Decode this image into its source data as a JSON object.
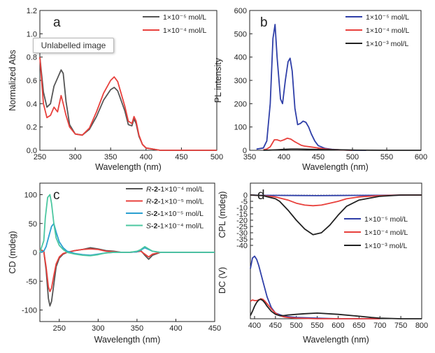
{
  "tooltip": {
    "text": "Unlabelled image"
  },
  "colors": {
    "axis": "#222222",
    "black": "#222222",
    "blue": "#2f3fa8",
    "red": "#e8403c",
    "cyan": "#2a9fd0",
    "green": "#4cc7a0",
    "gray": "#555555"
  },
  "chart_data": [
    {
      "panel": "a",
      "type": "line",
      "xlabel": "Wavelength (nm)",
      "ylabel": "Normalized Abs",
      "xlim": [
        250,
        500
      ],
      "ylim": [
        0,
        1.2
      ],
      "xticks": [
        250,
        300,
        350,
        400,
        450,
        500
      ],
      "yticks": [
        0.0,
        0.2,
        0.4,
        0.6,
        0.8,
        1.0,
        1.2
      ],
      "xtick_labels": [
        "250",
        "300",
        "350",
        "400",
        "450",
        "500"
      ],
      "ytick_labels": [
        "0.0",
        "0.2",
        "0.4",
        "0.6",
        "0.8",
        "1.0",
        "1.2"
      ],
      "legend_position": "top-right",
      "series": [
        {
          "name": "1×10⁻⁵ mol/L",
          "color": "#555555",
          "x": [
            250,
            255,
            260,
            265,
            270,
            275,
            280,
            283,
            287,
            292,
            300,
            310,
            320,
            330,
            340,
            350,
            355,
            360,
            370,
            375,
            380,
            383,
            386,
            390,
            395,
            400,
            420,
            450,
            500
          ],
          "y": [
            0.8,
            0.5,
            0.37,
            0.4,
            0.55,
            0.62,
            0.69,
            0.66,
            0.42,
            0.22,
            0.14,
            0.13,
            0.18,
            0.29,
            0.43,
            0.52,
            0.54,
            0.51,
            0.34,
            0.22,
            0.21,
            0.27,
            0.23,
            0.12,
            0.05,
            0.02,
            0.0,
            0.0,
            0.0
          ]
        },
        {
          "name": "1×10⁻⁴ mol/L",
          "color": "#e8403c",
          "x": [
            250,
            255,
            260,
            265,
            270,
            275,
            280,
            283,
            287,
            292,
            300,
            310,
            320,
            330,
            340,
            350,
            355,
            360,
            370,
            375,
            380,
            383,
            386,
            390,
            395,
            400,
            420,
            450,
            500
          ],
          "y": [
            0.8,
            0.4,
            0.28,
            0.3,
            0.37,
            0.33,
            0.47,
            0.4,
            0.3,
            0.2,
            0.14,
            0.13,
            0.19,
            0.33,
            0.49,
            0.6,
            0.63,
            0.59,
            0.38,
            0.25,
            0.23,
            0.29,
            0.25,
            0.13,
            0.05,
            0.02,
            0.0,
            0.0,
            0.0
          ]
        }
      ]
    },
    {
      "panel": "b",
      "type": "line",
      "xlabel": "Wavelength (nm)",
      "ylabel": "PL intensity",
      "xlim": [
        350,
        600
      ],
      "ylim": [
        0,
        600
      ],
      "xticks": [
        350,
        400,
        450,
        500,
        550,
        600
      ],
      "yticks": [
        0,
        100,
        200,
        300,
        400,
        500,
        600
      ],
      "xtick_labels": [
        "350",
        "400",
        "450",
        "500",
        "550",
        "600"
      ],
      "ytick_labels": [
        "0",
        "100",
        "200",
        "300",
        "400",
        "500",
        "600"
      ],
      "legend_position": "top-right",
      "series": [
        {
          "name": "1×10⁻⁵ mol/L",
          "color": "#2f3fa8",
          "x": [
            360,
            370,
            375,
            380,
            384,
            387,
            390,
            395,
            398,
            402,
            406,
            409,
            412,
            416,
            420,
            424,
            428,
            432,
            436,
            440,
            445,
            450,
            460,
            470,
            480,
            500,
            520
          ],
          "y": [
            5,
            10,
            40,
            200,
            480,
            540,
            400,
            220,
            200,
            300,
            380,
            395,
            340,
            180,
            110,
            115,
            125,
            120,
            100,
            70,
            40,
            20,
            8,
            4,
            2,
            0,
            0
          ]
        },
        {
          "name": "1×10⁻⁴ mol/L",
          "color": "#e8403c",
          "x": [
            370,
            375,
            380,
            386,
            390,
            395,
            400,
            405,
            410,
            415,
            420,
            425,
            430,
            440,
            450,
            460,
            470,
            480,
            490,
            500
          ],
          "y": [
            2,
            5,
            15,
            45,
            45,
            40,
            45,
            52,
            48,
            38,
            30,
            22,
            18,
            14,
            10,
            6,
            3,
            2,
            1,
            0
          ]
        },
        {
          "name": "1×10⁻³ mol/L",
          "color": "#222222",
          "x": [
            370,
            380,
            390,
            400,
            410,
            420,
            440,
            460,
            480,
            500,
            550,
            600
          ],
          "y": [
            0,
            1,
            2,
            4,
            5,
            5,
            4,
            3,
            2,
            1,
            0,
            0
          ]
        }
      ]
    },
    {
      "panel": "c",
      "type": "line",
      "xlabel": "Wavelength (nm)",
      "ylabel": "CD (mdeg)",
      "xlim": [
        225,
        450
      ],
      "ylim": [
        -120,
        120
      ],
      "xticks": [
        250,
        300,
        350,
        400,
        450
      ],
      "yticks": [
        -100,
        -50,
        0,
        50,
        100
      ],
      "xtick_labels": [
        "250",
        "300",
        "350",
        "400",
        "450"
      ],
      "ytick_labels": [
        "-100",
        "-50",
        "0",
        "50",
        "100"
      ],
      "legend_position": "top-right",
      "series": [
        {
          "name": "R-2-1×10⁻⁴ mol/L",
          "prefix": "R",
          "mid": "-2-",
          "conc": "1×10⁻⁴ mol/L",
          "color": "#555555",
          "x": [
            225,
            230,
            233,
            236,
            238,
            240,
            243,
            246,
            250,
            255,
            260,
            270,
            280,
            290,
            300,
            310,
            320,
            330,
            340,
            350,
            355,
            360,
            365,
            370,
            380,
            390,
            400,
            450
          ],
          "y": [
            5,
            2,
            -30,
            -80,
            -93,
            -85,
            -55,
            -25,
            -10,
            -3,
            0,
            3,
            5,
            8,
            6,
            3,
            2,
            0,
            0,
            1,
            3,
            -5,
            -12,
            -5,
            0,
            0,
            0,
            0
          ]
        },
        {
          "name": "R-2-1×10⁻⁵ mol/L",
          "prefix": "R",
          "mid": "-2-",
          "conc": "1×10⁻⁵ mol/L",
          "color": "#e8403c",
          "x": [
            225,
            230,
            233,
            236,
            238,
            240,
            243,
            246,
            250,
            255,
            260,
            270,
            280,
            290,
            300,
            310,
            320,
            330,
            340,
            350,
            355,
            360,
            365,
            370,
            380,
            390,
            400,
            450
          ],
          "y": [
            5,
            2,
            -25,
            -60,
            -68,
            -62,
            -40,
            -20,
            -8,
            -2,
            0,
            3,
            5,
            6,
            5,
            2,
            1,
            0,
            0,
            1,
            2,
            -3,
            -8,
            -3,
            0,
            0,
            0,
            0
          ]
        },
        {
          "name": "S-2-1×10⁻⁵ mol/L",
          "prefix": "S",
          "mid": "-2-",
          "conc": "1×10⁻⁵ mol/L",
          "color": "#2a9fd0",
          "x": [
            225,
            230,
            233,
            236,
            240,
            243,
            246,
            250,
            255,
            260,
            270,
            280,
            290,
            300,
            310,
            320,
            330,
            340,
            350,
            355,
            360,
            365,
            370,
            380,
            390,
            400,
            450
          ],
          "y": [
            0,
            2,
            10,
            25,
            45,
            50,
            35,
            18,
            8,
            2,
            -2,
            -4,
            -5,
            -3,
            -1,
            0,
            0,
            0,
            1,
            4,
            8,
            5,
            2,
            0,
            0,
            0,
            0
          ]
        },
        {
          "name": "S-2-1×10⁻⁴ mol/L",
          "prefix": "S",
          "mid": "-2-",
          "conc": "1×10⁻⁴ mol/L",
          "color": "#4cc7a0",
          "x": [
            225,
            230,
            232,
            235,
            238,
            240,
            243,
            246,
            250,
            255,
            260,
            270,
            280,
            290,
            300,
            310,
            320,
            330,
            340,
            350,
            355,
            360,
            365,
            370,
            380,
            390,
            400,
            450
          ],
          "y": [
            0,
            20,
            60,
            95,
            100,
            85,
            50,
            25,
            12,
            5,
            0,
            -3,
            -5,
            -6,
            -4,
            -1,
            0,
            0,
            0,
            2,
            5,
            10,
            6,
            2,
            0,
            0,
            0,
            0
          ]
        }
      ]
    },
    {
      "panel": "d",
      "type": "line",
      "xlabel": "Wavelength (nm)",
      "ylabel_top": "CPL (mdeg)",
      "ylabel_bottom": "DC (V)",
      "xlim": [
        390,
        800
      ],
      "ylim_top": [
        -45,
        5
      ],
      "xticks": [
        400,
        450,
        500,
        550,
        600,
        650,
        700,
        750,
        800
      ],
      "yticks_top": [
        0,
        -5,
        -10,
        -15,
        -20,
        -25,
        -30,
        -35,
        -40
      ],
      "xtick_labels": [
        "400",
        "450",
        "500",
        "550",
        "600",
        "650",
        "700",
        "750",
        "800"
      ],
      "ytick_labels_top": [
        "0",
        "-5",
        "-10",
        "-15",
        "-20",
        "-25",
        "-30",
        "-35",
        "-40"
      ],
      "legend_position": "middle-right",
      "cpl_series": [
        {
          "name": "1×10⁻⁵ mol/L",
          "color": "#2f3fa8",
          "x": [
            390,
            420,
            450,
            500,
            550,
            600,
            650,
            700,
            750,
            800
          ],
          "y": [
            0,
            -0.3,
            -0.3,
            -0.4,
            -0.5,
            -0.4,
            -0.3,
            -0.2,
            -0.1,
            0
          ]
        },
        {
          "name": "1×10⁻⁴ mol/L",
          "color": "#e8403c",
          "x": [
            390,
            420,
            450,
            480,
            500,
            520,
            540,
            560,
            580,
            600,
            620,
            650,
            700,
            750,
            800
          ],
          "y": [
            0,
            -0.5,
            -1.5,
            -4,
            -6.5,
            -8,
            -8.5,
            -8,
            -6.5,
            -5,
            -3,
            -1.5,
            -0.5,
            0,
            0
          ]
        },
        {
          "name": "1×10⁻³ mol/L",
          "color": "#222222",
          "x": [
            390,
            420,
            450,
            460,
            480,
            500,
            520,
            540,
            560,
            580,
            600,
            620,
            650,
            700,
            750,
            800
          ],
          "y": [
            0,
            -0.5,
            -3,
            -5,
            -12,
            -20,
            -27,
            -31.5,
            -30,
            -24,
            -16,
            -9,
            -4,
            -1,
            0,
            0
          ]
        }
      ],
      "dc_series": [
        {
          "name": "1×10⁻⁵ mol/L",
          "color": "#2f3fa8",
          "x": [
            390,
            395,
            400,
            405,
            410,
            420,
            430,
            440,
            450,
            470,
            500,
            550,
            600,
            650,
            700
          ],
          "y": [
            0.8,
            0.97,
            1.0,
            0.95,
            0.85,
            0.6,
            0.35,
            0.18,
            0.09,
            0.04,
            0.02,
            0.01,
            0.0,
            0.0,
            0.0
          ]
        },
        {
          "name": "1×10⁻⁴ mol/L",
          "color": "#e8403c",
          "x": [
            390,
            395,
            400,
            405,
            410,
            415,
            420,
            425,
            430,
            440,
            450,
            460,
            470,
            480,
            500,
            550,
            600,
            650,
            700
          ],
          "y": [
            0.28,
            0.3,
            0.29,
            0.29,
            0.3,
            0.32,
            0.31,
            0.28,
            0.24,
            0.16,
            0.09,
            0.05,
            0.03,
            0.02,
            0.01,
            0.0,
            0.0,
            0.0,
            0.0
          ]
        },
        {
          "name": "1×10⁻³ mol/L",
          "color": "#222222",
          "x": [
            390,
            395,
            400,
            405,
            410,
            415,
            420,
            425,
            430,
            440,
            450,
            460,
            470,
            480,
            500,
            520,
            550,
            600,
            650,
            680,
            700,
            750,
            800
          ],
          "y": [
            0.05,
            0.12,
            0.2,
            0.26,
            0.3,
            0.31,
            0.29,
            0.25,
            0.2,
            0.12,
            0.07,
            0.05,
            0.05,
            0.06,
            0.07,
            0.08,
            0.09,
            0.07,
            0.04,
            0.02,
            0.01,
            0.0,
            0.0
          ]
        }
      ]
    }
  ]
}
